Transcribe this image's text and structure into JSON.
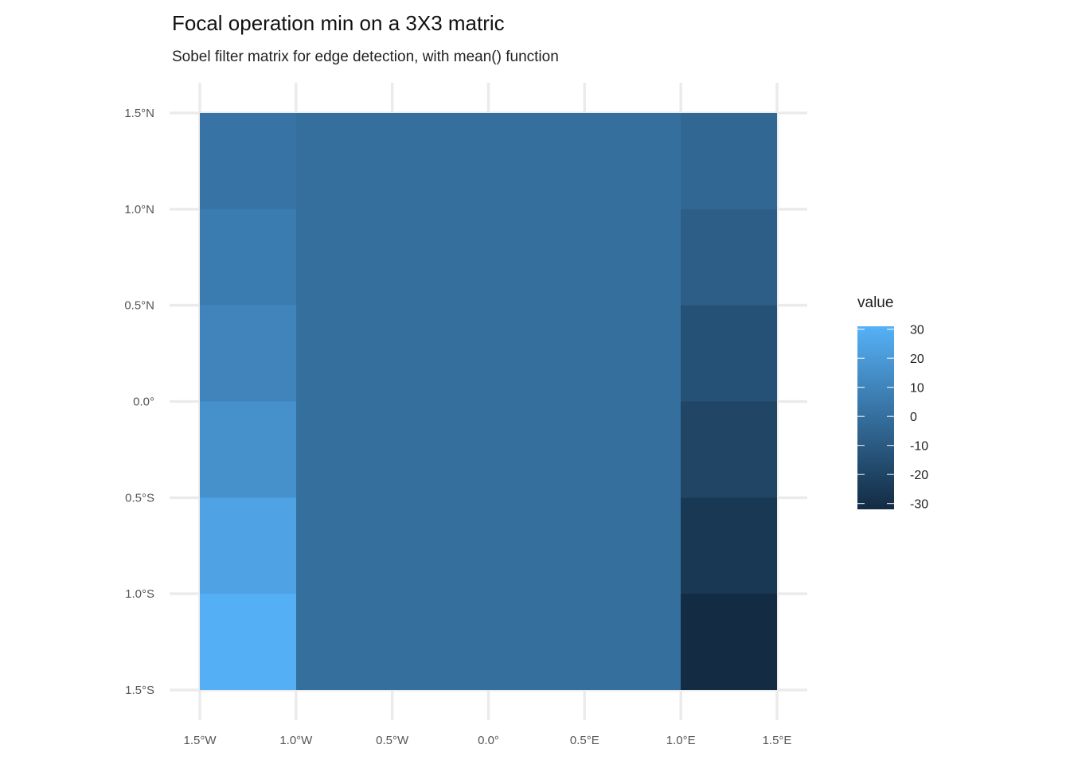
{
  "chart_data": {
    "type": "heatmap",
    "title": "Focal operation min on a 3X3 matric",
    "subtitle": "Sobel filter matrix for edge detection, with mean() function",
    "xlabel": "",
    "ylabel": "",
    "x_ticks": [
      "1.5°W",
      "1.0°W",
      "0.5°W",
      "0.0°",
      "0.5°E",
      "1.0°E",
      "1.5°E"
    ],
    "y_ticks": [
      "1.5°N",
      "1.0°N",
      "0.5°N",
      "0.0°",
      "0.5°S",
      "1.0°S",
      "1.5°S"
    ],
    "x_tick_values": [
      -1.5,
      -1.0,
      -0.5,
      0.0,
      0.5,
      1.0,
      1.5
    ],
    "y_tick_values": [
      1.5,
      1.0,
      0.5,
      0.0,
      -0.5,
      -1.0,
      -1.5
    ],
    "xlim": [
      -1.5,
      1.5
    ],
    "ylim": [
      -1.5,
      1.5
    ],
    "grid": true,
    "cells": [
      {
        "xmin": -1.5,
        "xmax": -1.0,
        "ymin": 1.0,
        "ymax": 1.5,
        "value": 2
      },
      {
        "xmin": -1.5,
        "xmax": -1.0,
        "ymin": 0.5,
        "ymax": 1.0,
        "value": 6
      },
      {
        "xmin": -1.5,
        "xmax": -1.0,
        "ymin": 0.0,
        "ymax": 0.5,
        "value": 10
      },
      {
        "xmin": -1.5,
        "xmax": -1.0,
        "ymin": -0.5,
        "ymax": 0.0,
        "value": 16
      },
      {
        "xmin": -1.5,
        "xmax": -1.0,
        "ymin": -1.0,
        "ymax": -0.5,
        "value": 24
      },
      {
        "xmin": -1.5,
        "xmax": -1.0,
        "ymin": -1.5,
        "ymax": -1.0,
        "value": 30
      },
      {
        "xmin": -1.0,
        "xmax": 1.0,
        "ymin": -1.5,
        "ymax": 1.5,
        "value": 0
      },
      {
        "xmin": 1.0,
        "xmax": 1.5,
        "ymin": 1.0,
        "ymax": 1.5,
        "value": -4
      },
      {
        "xmin": 1.0,
        "xmax": 1.5,
        "ymin": 0.5,
        "ymax": 1.0,
        "value": -8
      },
      {
        "xmin": 1.0,
        "xmax": 1.5,
        "ymin": 0.0,
        "ymax": 0.5,
        "value": -14
      },
      {
        "xmin": 1.0,
        "xmax": 1.5,
        "ymin": -0.5,
        "ymax": 0.0,
        "value": -20
      },
      {
        "xmin": 1.0,
        "xmax": 1.5,
        "ymin": -1.0,
        "ymax": -0.5,
        "value": -26
      },
      {
        "xmin": 1.0,
        "xmax": 1.5,
        "ymin": -1.5,
        "ymax": -1.0,
        "value": -32
      }
    ],
    "legend": {
      "title": "value",
      "placement": "right",
      "breaks": [
        30,
        20,
        10,
        0,
        -10,
        -20,
        -30
      ],
      "labels": [
        "30",
        "20",
        "10",
        "0",
        "-10",
        "-20",
        "-30"
      ],
      "range": [
        -32,
        31
      ],
      "color_low": "#132b43",
      "color_high": "#56b1f7"
    }
  }
}
